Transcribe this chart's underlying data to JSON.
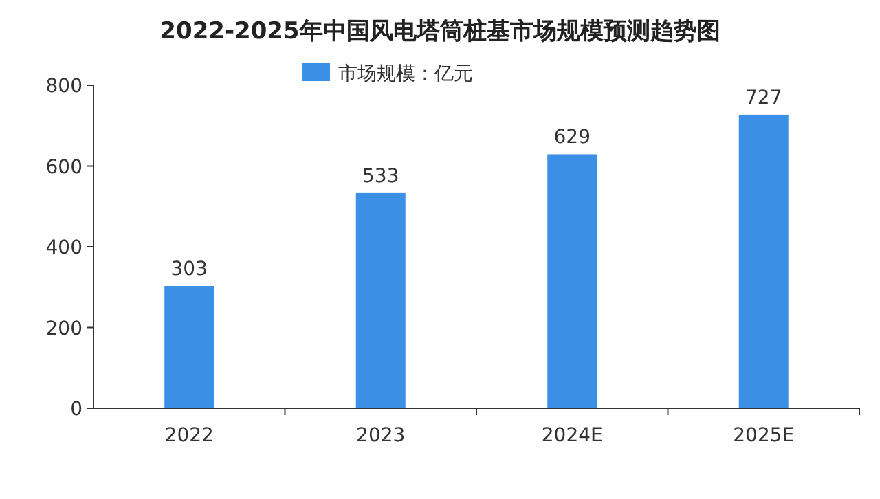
{
  "chart_data": {
    "type": "bar",
    "title": "2022-2025年中国风电塔筒桩基市场规模预测趋势图",
    "categories": [
      "2022",
      "2023",
      "2024E",
      "2025E"
    ],
    "series": [
      {
        "name": "市场规模：亿元",
        "color": "#3b8fe5",
        "values": [
          303,
          533,
          629,
          727
        ]
      }
    ],
    "ylim": [
      0,
      800
    ],
    "yticks": [
      0,
      200,
      400,
      600,
      800
    ],
    "data_labels": true,
    "legend": "top",
    "grid": false
  }
}
